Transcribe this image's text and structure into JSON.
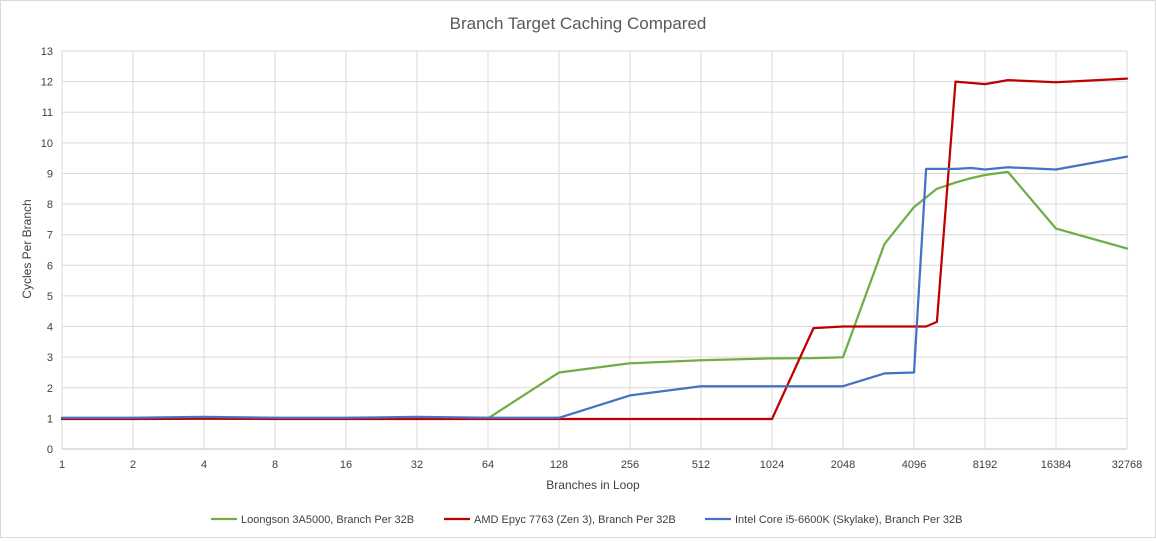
{
  "chart_data": {
    "type": "line",
    "title": "Branch Target Caching Compared",
    "xlabel": "Branches in Loop",
    "ylabel": "Cycles Per Branch",
    "x_scale": "log2",
    "ylim": [
      0,
      13
    ],
    "y_ticks": [
      0,
      1,
      2,
      3,
      4,
      5,
      6,
      7,
      8,
      9,
      10,
      11,
      12,
      13
    ],
    "x_ticks": [
      1,
      2,
      4,
      8,
      16,
      32,
      64,
      128,
      256,
      512,
      1024,
      2048,
      4096,
      8192,
      16384,
      32768
    ],
    "grid": true,
    "legend_position": "bottom",
    "series": [
      {
        "name": "Loongson 3A5000, Branch Per 32B",
        "color": "#70ad47",
        "points": [
          [
            1,
            1.0
          ],
          [
            2,
            1.0
          ],
          [
            4,
            1.02
          ],
          [
            8,
            1.0
          ],
          [
            16,
            1.0
          ],
          [
            32,
            1.02
          ],
          [
            64,
            1.0
          ],
          [
            128,
            2.5
          ],
          [
            256,
            2.8
          ],
          [
            512,
            2.9
          ],
          [
            1024,
            2.96
          ],
          [
            1536,
            2.97
          ],
          [
            2048,
            3.0
          ],
          [
            3072,
            6.7
          ],
          [
            4096,
            7.9
          ],
          [
            5120,
            8.5
          ],
          [
            6144,
            8.7
          ],
          [
            7168,
            8.85
          ],
          [
            8192,
            8.95
          ],
          [
            10240,
            9.05
          ],
          [
            16384,
            7.2
          ],
          [
            32768,
            6.55
          ]
        ]
      },
      {
        "name": "AMD Epyc 7763 (Zen 3), Branch Per 32B",
        "color": "#c00000",
        "points": [
          [
            1,
            0.98
          ],
          [
            2,
            0.98
          ],
          [
            4,
            0.99
          ],
          [
            8,
            0.98
          ],
          [
            16,
            0.98
          ],
          [
            32,
            0.98
          ],
          [
            64,
            0.98
          ],
          [
            128,
            0.98
          ],
          [
            256,
            0.98
          ],
          [
            512,
            0.98
          ],
          [
            1024,
            0.98
          ],
          [
            1536,
            3.95
          ],
          [
            2048,
            4.0
          ],
          [
            4096,
            4.0
          ],
          [
            4608,
            4.0
          ],
          [
            5120,
            4.15
          ],
          [
            6144,
            12.0
          ],
          [
            8192,
            11.92
          ],
          [
            10240,
            12.05
          ],
          [
            16384,
            11.98
          ],
          [
            32768,
            12.1
          ]
        ]
      },
      {
        "name": "Intel Core i5-6600K (Skylake), Branch Per 32B",
        "color": "#4472c4",
        "points": [
          [
            1,
            1.02
          ],
          [
            2,
            1.02
          ],
          [
            4,
            1.05
          ],
          [
            8,
            1.02
          ],
          [
            16,
            1.02
          ],
          [
            32,
            1.05
          ],
          [
            64,
            1.02
          ],
          [
            128,
            1.02
          ],
          [
            256,
            1.75
          ],
          [
            512,
            2.05
          ],
          [
            1024,
            2.05
          ],
          [
            2048,
            2.05
          ],
          [
            3072,
            2.47
          ],
          [
            4096,
            2.5
          ],
          [
            4608,
            9.15
          ],
          [
            6144,
            9.15
          ],
          [
            7168,
            9.18
          ],
          [
            8192,
            9.13
          ],
          [
            10240,
            9.2
          ],
          [
            16384,
            9.13
          ],
          [
            32768,
            9.55
          ]
        ]
      }
    ]
  }
}
